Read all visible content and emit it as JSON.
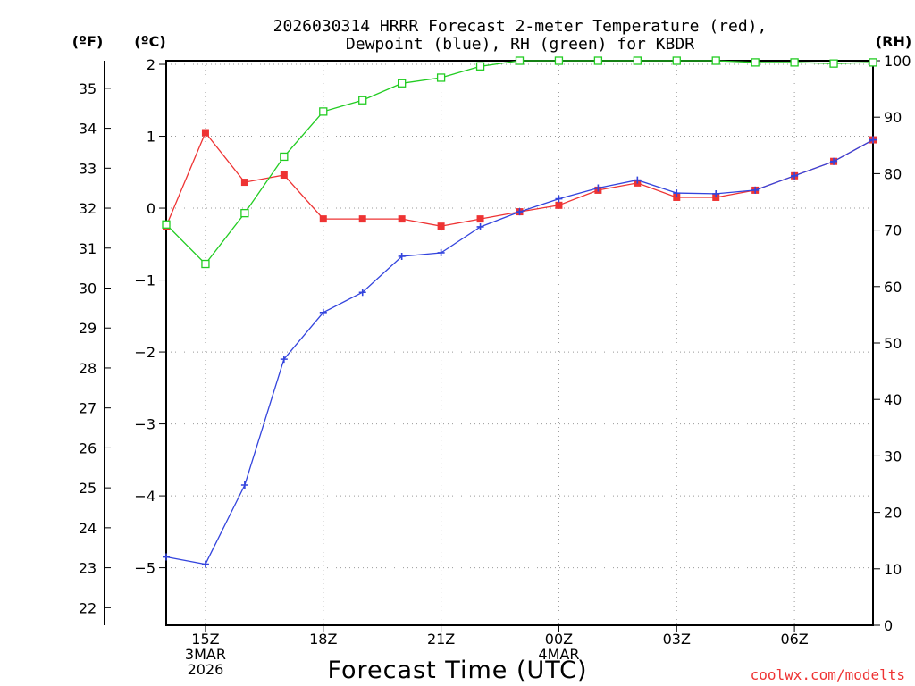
{
  "chart_data": {
    "type": "line",
    "title_line1": "2026030314 HRRR Forecast 2-meter Temperature (red),",
    "title_line2": "Dewpoint (blue), RH (green) for KBDR",
    "xlabel": "Forecast Time (UTC)",
    "credit": "coolwx.com/modelts",
    "units": {
      "fahrenheit": "(ºF)",
      "celsius": "(ºC)",
      "rh": "(RH)"
    },
    "x_hours": [
      14,
      15,
      16,
      17,
      18,
      19,
      20,
      21,
      22,
      23,
      24,
      25,
      26,
      27,
      28,
      29,
      30,
      31,
      32
    ],
    "x_ticks": [
      {
        "hour": 15,
        "labels": [
          "15Z",
          "3MAR",
          "2026"
        ]
      },
      {
        "hour": 18,
        "labels": [
          "18Z"
        ]
      },
      {
        "hour": 21,
        "labels": [
          "21Z"
        ]
      },
      {
        "hour": 24,
        "labels": [
          "00Z",
          "4MAR"
        ]
      },
      {
        "hour": 27,
        "labels": [
          "03Z"
        ]
      },
      {
        "hour": 30,
        "labels": [
          "06Z"
        ]
      }
    ],
    "xlim": [
      14,
      32
    ],
    "celsius_ylim": [
      -5.8,
      2.05
    ],
    "celsius_ticks": [
      "2",
      "1",
      "0",
      "−1",
      "−2",
      "−3",
      "−4",
      "−5"
    ],
    "fahrenheit_ticks": [
      "35",
      "34",
      "33",
      "32",
      "31",
      "30",
      "29",
      "28",
      "27",
      "26",
      "25",
      "24",
      "23",
      "22"
    ],
    "rh_ylim": [
      0,
      100
    ],
    "rh_ticks": [
      "100",
      "90",
      "80",
      "70",
      "60",
      "50",
      "40",
      "30",
      "20",
      "10",
      "0"
    ],
    "series": [
      {
        "name": "Temperature",
        "unit": "C",
        "color": "#ee3333",
        "marker": "filled-square",
        "values": [
          -0.25,
          1.05,
          0.36,
          0.46,
          -0.15,
          -0.15,
          -0.15,
          -0.25,
          -0.15,
          -0.05,
          0.04,
          0.25,
          0.35,
          0.15,
          0.15,
          0.25,
          0.45,
          0.65,
          0.95
        ]
      },
      {
        "name": "Dewpoint",
        "unit": "C",
        "color": "#3344dd",
        "marker": "plus",
        "values": [
          -4.85,
          -4.95,
          -3.85,
          -2.1,
          -1.45,
          -1.17,
          -0.67,
          -0.62,
          -0.26,
          -0.05,
          0.13,
          0.28,
          0.39,
          0.21,
          0.2,
          0.25,
          0.45,
          0.65,
          0.95
        ]
      },
      {
        "name": "RH",
        "unit": "%",
        "color": "#22cc22",
        "marker": "open-square",
        "values": [
          71,
          64,
          73,
          83,
          91,
          93,
          96,
          97,
          99,
          100,
          100.4,
          100,
          100,
          100,
          100,
          99.7,
          99.7,
          99.5,
          99.7
        ]
      }
    ]
  }
}
